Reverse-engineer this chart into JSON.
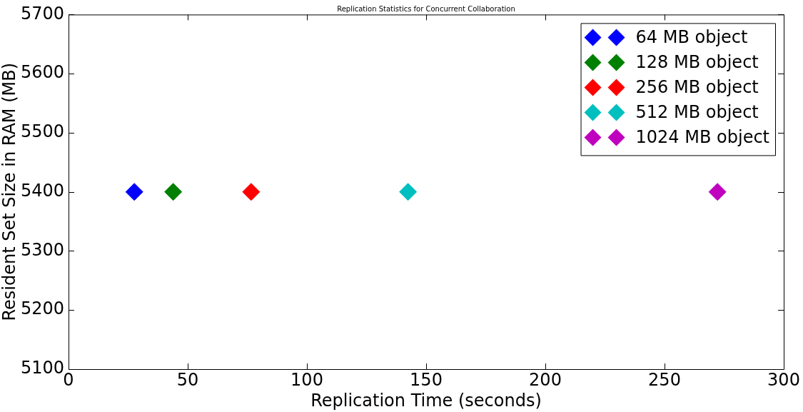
{
  "chart_data": {
    "type": "scatter",
    "title": "Replication Statistics for Concurrent Collaboration",
    "xlabel": "Replication Time (seconds)",
    "ylabel": "Resident Set Size in RAM (MB)",
    "xlim": [
      0,
      300
    ],
    "xticks": [
      0,
      50,
      100,
      150,
      200,
      250,
      300
    ],
    "ylim": [
      5100,
      5700
    ],
    "yticks": [
      5100,
      5200,
      5300,
      5400,
      5500,
      5600,
      5700
    ],
    "marker": "diamond",
    "legend": "top right",
    "grid": false,
    "series": [
      {
        "name": "64 MB object",
        "color": "#0000ff",
        "x": [
          27.6
        ],
        "values": [
          5400
        ]
      },
      {
        "name": "128 MB object",
        "color": "#008000",
        "x": [
          43.9
        ],
        "values": [
          5400
        ]
      },
      {
        "name": "256 MB object",
        "color": "#ff0000",
        "x": [
          76.6
        ],
        "values": [
          5400
        ]
      },
      {
        "name": "512 MB object",
        "color": "#00bfbf",
        "x": [
          142.4
        ],
        "values": [
          5400
        ]
      },
      {
        "name": "1024 MB object",
        "color": "#bf00bf",
        "x": [
          272.2
        ],
        "values": [
          5400
        ]
      }
    ]
  }
}
